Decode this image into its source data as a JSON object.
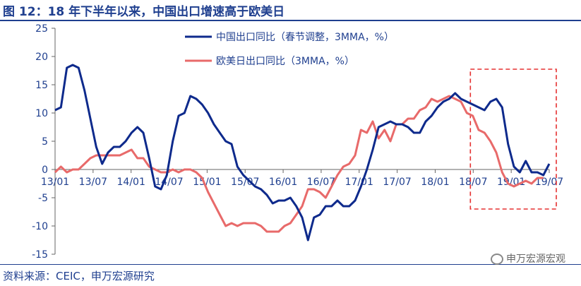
{
  "title": "图 12：18 年下半年以来，中国出口增速高于欧美日",
  "source": "资料来源：CEIC，申万宏源研究",
  "watermark": "申万宏源宏观",
  "chart_data": {
    "type": "line",
    "title": "图 12：18 年下半年以来，中国出口增速高于欧美日",
    "xlabel": "",
    "ylabel": "",
    "ylim": [
      -15,
      25
    ],
    "yticks": [
      25,
      20,
      15,
      10,
      5,
      0,
      -5,
      -10,
      -15
    ],
    "xticks": [
      "13/01",
      "13/07",
      "14/01",
      "14/07",
      "15/01",
      "15/07",
      "16/01",
      "16/07",
      "17/01",
      "17/07",
      "18/01",
      "18/07",
      "19/01",
      "19/07"
    ],
    "grid": false,
    "legend": "top-left",
    "highlight_box": {
      "start": "18/07",
      "end": "19/07"
    },
    "series": [
      {
        "name": "中国出口同比（春节调整，3MMA，%）",
        "color": "#0e2a8c",
        "values": [
          10.5,
          11,
          18,
          18.5,
          18,
          14,
          9,
          4,
          1,
          3,
          4,
          4,
          5,
          6.5,
          7.5,
          6.5,
          2,
          -3,
          -3.5,
          -1,
          5,
          9.5,
          10,
          13,
          12.5,
          11.5,
          10,
          8,
          6.5,
          5,
          4.5,
          0.5,
          -1,
          -2,
          -3,
          -3.5,
          -4.5,
          -6,
          -5.5,
          -5.5,
          -5,
          -6.5,
          -8.5,
          -12.5,
          -8.5,
          -8,
          -6.5,
          -6.5,
          -5.5,
          -6.5,
          -6.5,
          -5.5,
          -3,
          0,
          3.5,
          7.5,
          8,
          8.5,
          8,
          8,
          7.5,
          6.5,
          6.5,
          8.5,
          9.5,
          11,
          12,
          12.5,
          13.5,
          12.5,
          12,
          11.5,
          11,
          10.5,
          12,
          12.5,
          11,
          4.5,
          0.5,
          -0.5,
          1.5,
          -0.5,
          -0.5,
          -1,
          1
        ]
      },
      {
        "name": "欧美日出口同比（3MMA，%）",
        "color": "#e86a6a",
        "values": [
          -0.5,
          0.5,
          -0.5,
          0,
          0,
          1,
          2,
          2.5,
          2.5,
          2.5,
          2.5,
          2.5,
          3,
          3.5,
          2,
          2,
          0.5,
          0,
          -0.5,
          -0.5,
          0,
          -0.5,
          0,
          0,
          -0.5,
          -1.5,
          -4,
          -6,
          -8,
          -10,
          -9.5,
          -10,
          -9.5,
          -9.5,
          -9.5,
          -10,
          -11,
          -11,
          -11,
          -10,
          -9.5,
          -8,
          -6.5,
          -3.5,
          -3.5,
          -4,
          -5,
          -3,
          -1,
          0.5,
          1,
          2.5,
          7,
          6.5,
          8.5,
          5.5,
          7,
          5,
          8,
          8,
          9,
          9,
          10.5,
          11,
          12.5,
          12,
          12.5,
          13,
          12.5,
          12,
          10,
          9.5,
          7,
          6.5,
          5,
          3,
          -0.5,
          -2.5,
          -3,
          -2.5,
          -2,
          -2.5,
          -1.5,
          -1.5
        ]
      }
    ]
  }
}
